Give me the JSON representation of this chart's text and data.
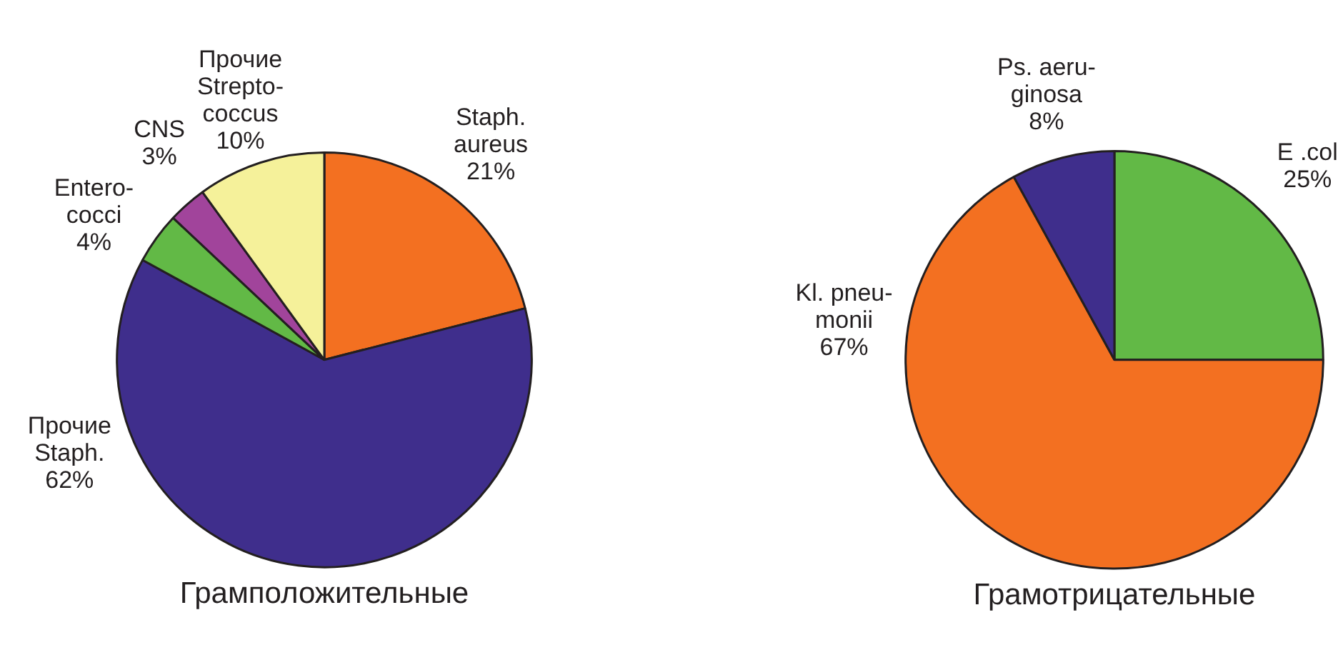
{
  "chart_data": [
    {
      "type": "pie",
      "title": "Грамположительные",
      "categories": [
        "Staph.\naureus",
        "Прочие\nStaph.",
        "Entero-\ncocci",
        "CNS",
        "Прочие\nStrepto-\ncoccus"
      ],
      "values": [
        21,
        62,
        4,
        3,
        10
      ],
      "value_labels": [
        "21%",
        "62%",
        "4%",
        "3%",
        "10%"
      ],
      "colors": [
        "#f37021",
        "#3f2e8c",
        "#62b946",
        "#a1449b",
        "#f5f19a"
      ],
      "legend": false
    },
    {
      "type": "pie",
      "title": "Грамотрицательные",
      "categories": [
        "E .col",
        "Kl. pneu-\nmonii",
        "Ps. aeru-\nginosa"
      ],
      "values": [
        25,
        67,
        8
      ],
      "value_labels": [
        "25%",
        "67%",
        "8%"
      ],
      "colors": [
        "#62b946",
        "#f37021",
        "#3f2e8c"
      ],
      "legend": false
    }
  ]
}
